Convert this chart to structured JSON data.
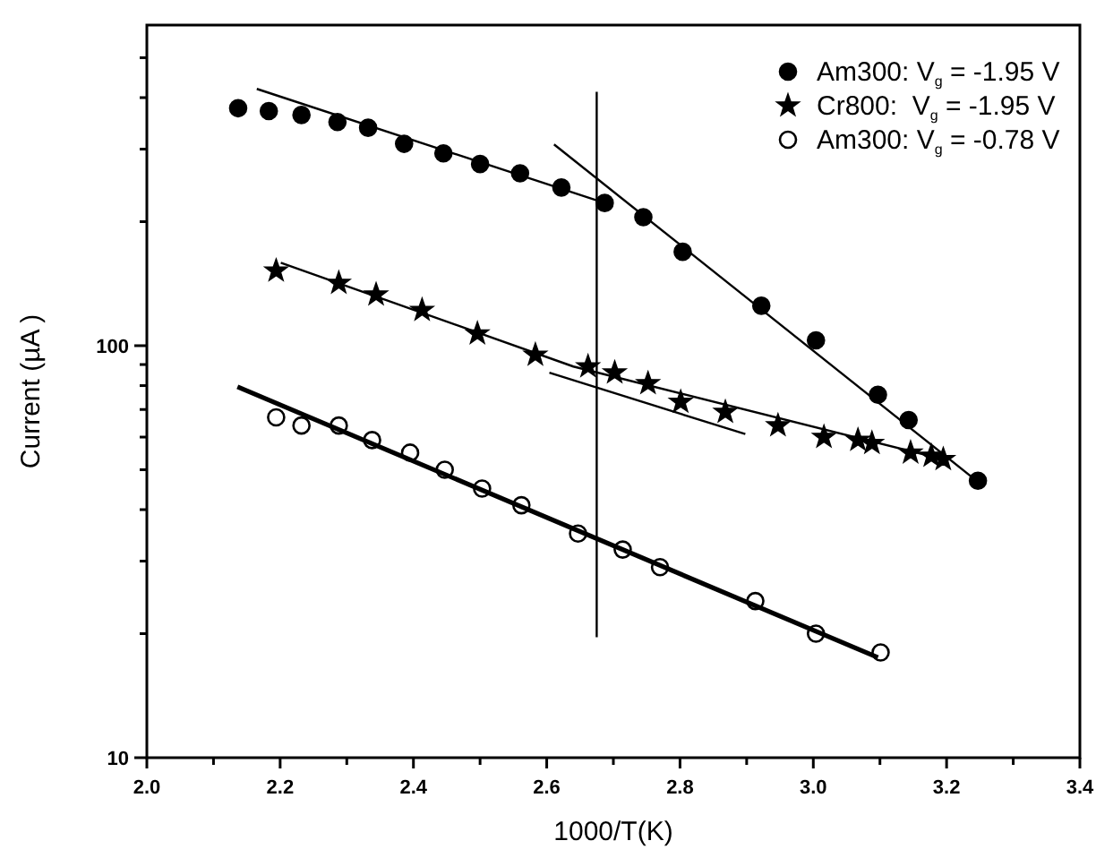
{
  "chart_data": {
    "type": "scatter",
    "xlabel": "1000/T(K)",
    "ylabel": "Current (µA )",
    "log": "y",
    "legend": "top right",
    "grid": false,
    "xlim": [
      2.0,
      3.4
    ],
    "ylim": [
      10,
      600
    ],
    "xticks": [
      {
        "value": 2.0,
        "label": "2.0"
      },
      {
        "value": 2.1,
        "label": null
      },
      {
        "value": 2.2,
        "label": "2.2"
      },
      {
        "value": 2.3,
        "label": null
      },
      {
        "value": 2.4,
        "label": "2.4"
      },
      {
        "value": 2.5,
        "label": null
      },
      {
        "value": 2.6,
        "label": "2.6"
      },
      {
        "value": 2.7,
        "label": null
      },
      {
        "value": 2.8,
        "label": "2.8"
      },
      {
        "value": 2.9,
        "label": null
      },
      {
        "value": 3.0,
        "label": "3.0"
      },
      {
        "value": 3.1,
        "label": null
      },
      {
        "value": 3.2,
        "label": "3.2"
      },
      {
        "value": 3.3,
        "label": null
      },
      {
        "value": 3.4,
        "label": "3.4"
      }
    ],
    "yticks": [
      10,
      {
        "value": 20,
        "label": null
      },
      {
        "value": 30,
        "label": null
      },
      {
        "value": 40,
        "label": null
      },
      {
        "value": 50,
        "label": null
      },
      {
        "value": 60,
        "label": null
      },
      {
        "value": 70,
        "label": null
      },
      {
        "value": 80,
        "label": null
      },
      {
        "value": 90,
        "label": null
      },
      100,
      {
        "value": 200,
        "label": null
      },
      {
        "value": 300,
        "label": null
      },
      {
        "value": 400,
        "label": null
      },
      {
        "value": 500,
        "label": null
      }
    ],
    "series": [
      {
        "name": "Am300: V$_{g}$ = -1.95 V",
        "marker": "circle",
        "color": "#000000",
        "x": [
          2.137,
          2.183,
          2.232,
          2.286,
          2.332,
          2.386,
          2.445,
          2.5,
          2.56,
          2.622,
          2.687,
          2.745,
          2.804,
          2.922,
          3.004,
          3.097,
          3.143,
          3.247
        ],
        "values": [
          377,
          371,
          363,
          349,
          338,
          309,
          293,
          276,
          262,
          242,
          222,
          205,
          169,
          125,
          103,
          76,
          66,
          47
        ]
      },
      {
        "name": "Cr800:  V$_{g}$ = -1.95 V",
        "marker": "star",
        "color": "#000000",
        "x": [
          2.194,
          2.288,
          2.344,
          2.413,
          2.496,
          2.583,
          2.662,
          2.702,
          2.752,
          2.801,
          2.868,
          2.947,
          3.016,
          3.067,
          3.088,
          3.146,
          3.177,
          3.195
        ],
        "values": [
          152,
          142,
          133,
          122,
          107,
          95,
          89,
          86,
          81,
          73,
          69,
          64,
          60,
          59,
          58,
          55,
          54,
          53
        ]
      },
      {
        "name": "Am300: V$_{g}$ = -0.78 V",
        "marker": "circle",
        "color": "#ffffff",
        "x": [
          2.194,
          2.232,
          2.288,
          2.338,
          2.395,
          2.447,
          2.503,
          2.562,
          2.647,
          2.714,
          2.77,
          2.913,
          3.004,
          3.101
        ],
        "values": [
          67,
          64,
          64,
          59,
          55,
          50,
          45,
          41,
          35,
          32,
          29,
          24,
          20,
          18
        ]
      },
      {
        "type": "line",
        "color": "#000000",
        "x": [
          2.165,
          2.687
        ],
        "values": [
          420,
          222
        ]
      },
      {
        "type": "line",
        "color": "#000000",
        "x": [
          2.611,
          3.245
        ],
        "values": [
          308,
          47
        ]
      },
      {
        "type": "line",
        "color": "#000000",
        "x": [
          2.201,
          2.64,
          3.195
        ],
        "values": [
          159,
          89,
          53
        ]
      },
      {
        "type": "line",
        "color": "#000000",
        "x": [
          2.604,
          2.898
        ],
        "values": [
          86,
          61
        ]
      },
      {
        "type": "line",
        "color": "#000000",
        "x": [
          2.136,
          3.097
        ],
        "values": [
          79.5,
          17.5
        ]
      },
      {
        "type": "line",
        "color": "#000000",
        "x": [
          2.675,
          2.675
        ],
        "values": [
          413,
          19.6
        ]
      }
    ]
  }
}
